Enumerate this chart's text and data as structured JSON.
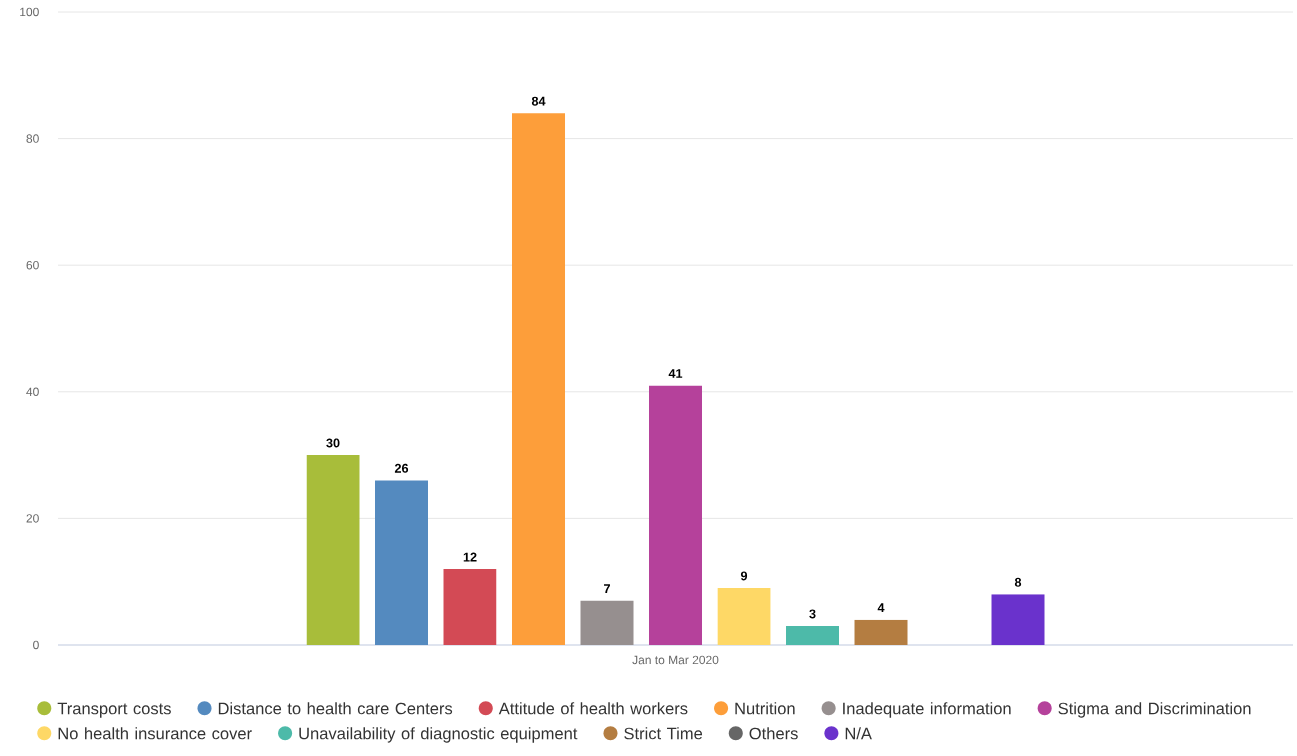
{
  "chart_data": {
    "type": "bar",
    "categories": [
      "Jan to Mar 2020"
    ],
    "series": [
      {
        "name": "Transport costs",
        "color": "#a8bd3a",
        "values": [
          30
        ]
      },
      {
        "name": "Distance to health care Centers",
        "color": "#548abf",
        "values": [
          26
        ]
      },
      {
        "name": "Attitude of health workers",
        "color": "#d34a55",
        "values": [
          12
        ]
      },
      {
        "name": "Nutrition",
        "color": "#fd9e3a",
        "values": [
          84
        ]
      },
      {
        "name": "Inadequate information",
        "color": "#968f8f",
        "values": [
          7
        ]
      },
      {
        "name": "Stigma and Discrimination",
        "color": "#b5419b",
        "values": [
          41
        ]
      },
      {
        "name": "No health insurance cover",
        "color": "#fed866",
        "values": [
          9
        ]
      },
      {
        "name": "Unavailability of diagnostic equipment",
        "color": "#4dbaa9",
        "values": [
          3
        ]
      },
      {
        "name": "Strict Time",
        "color": "#b47d41",
        "values": [
          4
        ]
      },
      {
        "name": "Others",
        "color": "#666666",
        "values": [
          null
        ]
      },
      {
        "name": "N/A",
        "color": "#6a32cc",
        "values": [
          8
        ]
      }
    ],
    "ylim": [
      0,
      100
    ],
    "yticks": [
      0,
      20,
      40,
      60,
      80,
      100
    ],
    "grid": "y",
    "legend": "bottom",
    "data_labels": true
  }
}
